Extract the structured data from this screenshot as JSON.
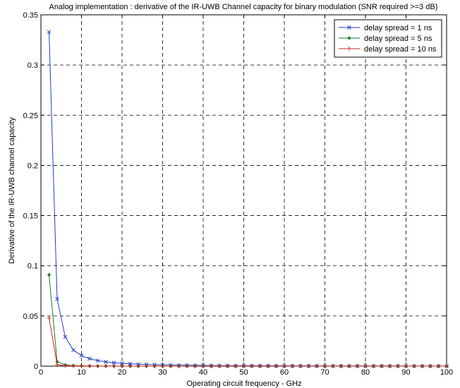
{
  "chart_data": {
    "type": "line",
    "title": "Analog implementation : derivative of the IR-UWB Channel capacity for binary modulation (SNR required >=3 dB)",
    "xlabel": "Operating circuit frequency - GHz",
    "ylabel": "Derivative of the IR-UWB channel capacity",
    "xlim": [
      0,
      100
    ],
    "ylim": [
      0,
      0.35
    ],
    "xticks": [
      0,
      10,
      20,
      30,
      40,
      50,
      60,
      70,
      80,
      90,
      100
    ],
    "yticks": [
      0,
      0.05,
      0.1,
      0.15,
      0.2,
      0.25,
      0.3,
      0.35
    ],
    "ytick_labels": [
      "0",
      "0.05",
      "0.1",
      "0.15",
      "0.2",
      "0.25",
      "0.3",
      "0.35"
    ],
    "grid": true,
    "legend_position": "top-right",
    "x": [
      2,
      4,
      6,
      8,
      10,
      12,
      14,
      16,
      18,
      20,
      22,
      24,
      26,
      28,
      30,
      32,
      34,
      36,
      38,
      40,
      42,
      44,
      46,
      48,
      50,
      52,
      54,
      56,
      58,
      60,
      62,
      64,
      66,
      68,
      70,
      72,
      74,
      76,
      78,
      80,
      82,
      84,
      86,
      88,
      90,
      92,
      94,
      96,
      98,
      100
    ],
    "series": [
      {
        "name": "delay spread = 1 ns",
        "color": "#1f3fbf",
        "marker": "x",
        "values": [
          0.333,
          0.067,
          0.029,
          0.016,
          0.0105,
          0.0074,
          0.0055,
          0.0042,
          0.0034,
          0.0027,
          0.0023,
          0.0019,
          0.0016,
          0.0014,
          0.0012,
          0.0011,
          0.00095,
          0.00085,
          0.00077,
          0.0007,
          0.00063,
          0.00057,
          0.00052,
          0.00048,
          0.00044,
          0.00041,
          0.00038,
          0.00035,
          0.00033,
          0.00031,
          0.00029,
          0.00027,
          0.00025,
          0.00024,
          0.00022,
          0.00021,
          0.0002,
          0.00019,
          0.00018,
          0.00017,
          0.00016,
          0.00015,
          0.00014,
          0.00014,
          0.00013,
          0.00012,
          0.00012,
          0.00011,
          0.00011,
          0.0001
        ]
      },
      {
        "name": "delay spread = 5 ns",
        "color": "#1a7a2a",
        "marker": "dot",
        "values": [
          0.091,
          0.0045,
          0.0012,
          0.0005,
          0.00025,
          0.00015,
          0.0001,
          7e-05,
          5e-05,
          4e-05,
          3e-05,
          3e-05,
          2e-05,
          2e-05,
          2e-05,
          1e-05,
          1e-05,
          1e-05,
          1e-05,
          1e-05,
          1e-05,
          1e-05,
          1e-05,
          1e-05,
          1e-05,
          1e-05,
          1e-05,
          1e-05,
          1e-05,
          1e-05,
          1e-05,
          1e-05,
          1e-05,
          1e-05,
          1e-05,
          1e-05,
          1e-05,
          1e-05,
          1e-05,
          1e-05,
          1e-05,
          1e-05,
          1e-05,
          1e-05,
          1e-05,
          1e-05,
          1e-05,
          1e-05,
          1e-05,
          1e-05
        ]
      },
      {
        "name": "delay spread = 10 ns",
        "color": "#d42020",
        "marker": "plus",
        "values": [
          0.048,
          0.0015,
          0.0004,
          0.00015,
          8e-05,
          5e-05,
          3e-05,
          2e-05,
          2e-05,
          1e-05,
          1e-05,
          1e-05,
          1e-05,
          1e-05,
          1e-05,
          0.0,
          0.0,
          0.0,
          0.0,
          0.0,
          0.0,
          0.0,
          0.0,
          0.0,
          0.0,
          0.0,
          0.0,
          0.0,
          0.0,
          0.0,
          0.0,
          0.0,
          0.0,
          0.0,
          0.0,
          0.0,
          0.0,
          0.0,
          0.0,
          0.0,
          0.0,
          0.0,
          0.0,
          0.0,
          0.0,
          0.0,
          0.0,
          0.0,
          0.0,
          0.0
        ]
      }
    ]
  }
}
